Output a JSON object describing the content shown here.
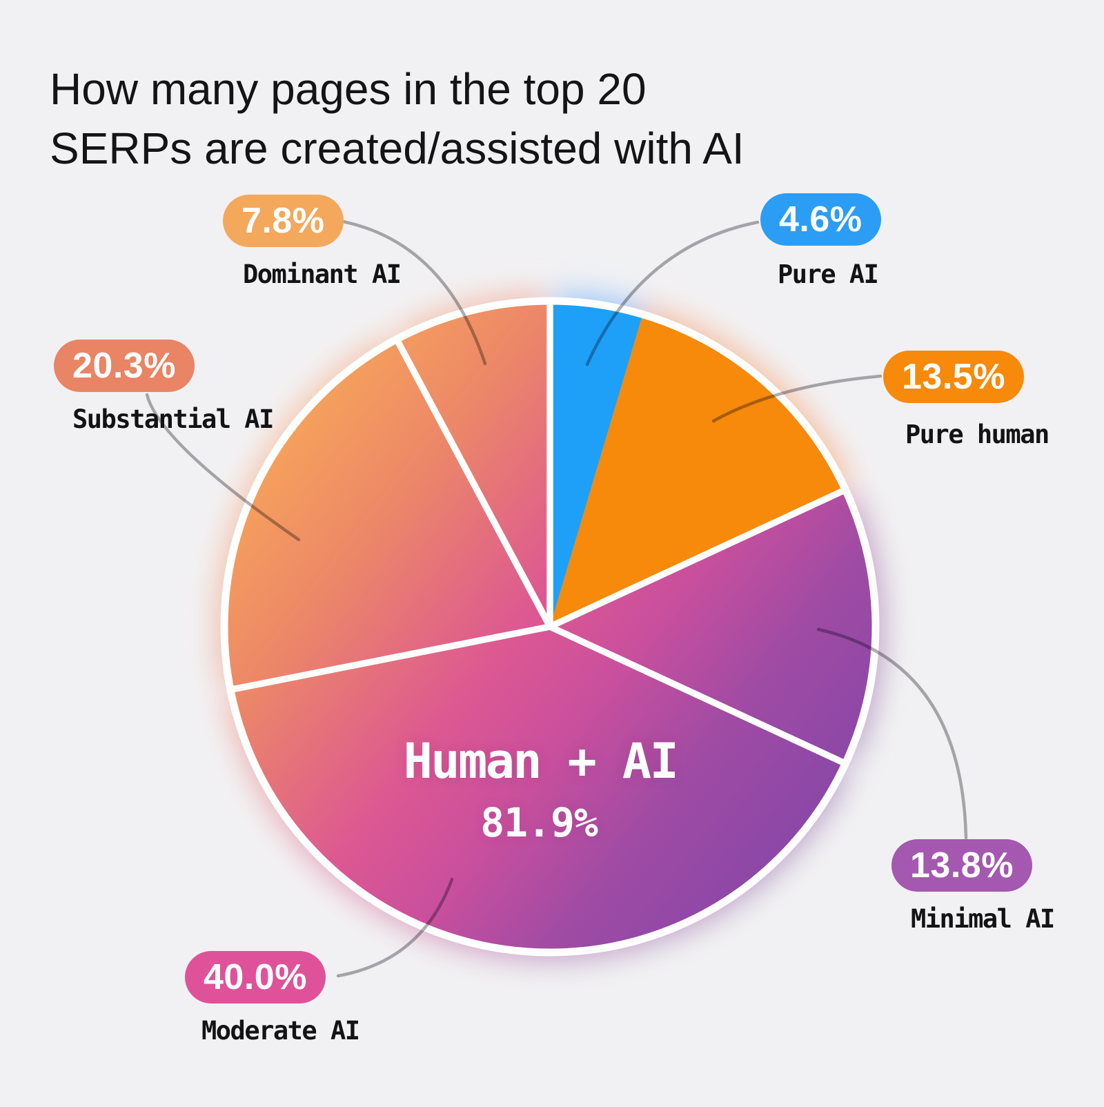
{
  "background_color": "#f1f1f3",
  "title": {
    "line1": "How many pages in the top 20",
    "line2": "SERPs are created/assisted with AI"
  },
  "chart_data": {
    "type": "pie",
    "title": "How many pages in the top 20 SERPs are created/assisted with AI",
    "unit": "%",
    "start_angle": "12 o'clock, clockwise",
    "slices": [
      {
        "label": "Pure AI",
        "value": 4.6,
        "fill": "#1FA0F8"
      },
      {
        "label": "Pure human",
        "value": 13.5,
        "fill": "#F7890B"
      },
      {
        "label": "Minimal AI",
        "value": 13.8,
        "fill": "gradient"
      },
      {
        "label": "Moderate AI",
        "value": 40.0,
        "fill": "gradient"
      },
      {
        "label": "Substantial AI",
        "value": 20.3,
        "fill": "gradient"
      },
      {
        "label": "Dominant AI",
        "value": 7.8,
        "fill": "gradient"
      }
    ],
    "gradient_stops": [
      [
        0,
        "#F9AA58"
      ],
      [
        0.25,
        "#EC8768"
      ],
      [
        0.5,
        "#DC5892"
      ],
      [
        0.65,
        "#C94F9D"
      ],
      [
        0.82,
        "#9F4BA4"
      ],
      [
        1,
        "#8B47A7"
      ]
    ],
    "divider_boundaries_pct": [
      0,
      18.1,
      31.9,
      71.9,
      92.2
    ],
    "center_label": {
      "text": "Human + AI",
      "value": "81.9%"
    },
    "callouts": [
      {
        "badge": "7.8%",
        "label": "Dominant AI",
        "color": "#F4A85C"
      },
      {
        "badge": "4.6%",
        "label": "Pure AI",
        "color": "#2B9DF5"
      },
      {
        "badge": "13.5%",
        "label": "Pure human",
        "color": "#F7890B"
      },
      {
        "badge": "13.8%",
        "label": "Minimal AI",
        "color": "#A458AF"
      },
      {
        "badge": "40.0%",
        "label": "Moderate AI",
        "color": "#DF5299"
      },
      {
        "badge": "20.3%",
        "label": "Substantial AI",
        "color": "#E98465"
      }
    ]
  }
}
